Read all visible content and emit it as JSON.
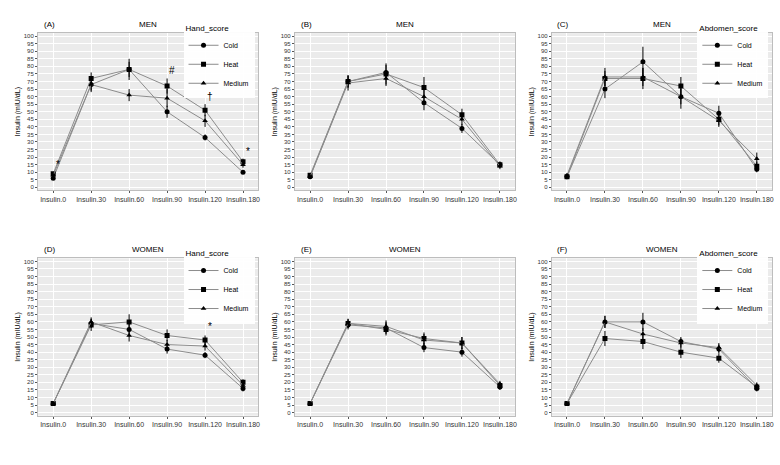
{
  "chart_data": [
    {
      "type": "line",
      "panel_label": "(A)",
      "title": "MEN",
      "legend_title": "Hand_score",
      "legend": "top right",
      "grid": true,
      "y_label": "Insulin (mIU/dL)",
      "categories": [
        "Insulin.0",
        "Insulin.30",
        "Insulin.60",
        "Insulin.90",
        "Insulin.120",
        "Insulin.180"
      ],
      "ylim": [
        -2,
        102
      ],
      "yticks": [
        0,
        5,
        10,
        15,
        20,
        25,
        30,
        35,
        40,
        45,
        50,
        55,
        60,
        65,
        70,
        75,
        80,
        85,
        90,
        95,
        100
      ],
      "series": [
        {
          "name": "Cold",
          "color": "#000000",
          "marker": "circle",
          "line_style": "solid",
          "values": [
            6,
            68,
            78,
            50,
            33,
            10
          ],
          "errors": [
            1,
            4,
            5,
            4,
            2,
            1
          ]
        },
        {
          "name": "Heat",
          "color": "#000000",
          "marker": "square",
          "line_style": "solid",
          "values": [
            9,
            72,
            78,
            67,
            51,
            17
          ],
          "errors": [
            1,
            4,
            7,
            5,
            4,
            2
          ]
        },
        {
          "name": "Medium",
          "color": "#000000",
          "marker": "triangle-up",
          "line_style": "solid",
          "values": [
            8,
            68,
            61,
            59,
            44,
            15
          ],
          "errors": [
            1,
            5,
            4,
            6,
            4,
            2
          ]
        }
      ],
      "annotations": [
        {
          "x": "Insulin.0",
          "y": 10,
          "text": "*"
        },
        {
          "x": "Insulin.90",
          "y": 72,
          "text": "#"
        },
        {
          "x": "Insulin.120",
          "y": 55,
          "text": "†"
        },
        {
          "x": "Insulin.180",
          "y": 19,
          "text": "*"
        }
      ]
    },
    {
      "type": "line",
      "panel_label": "(B)",
      "title": "MEN",
      "legend": false,
      "grid": true,
      "y_label": "Insulin (mIU/dL)",
      "categories": [
        "Insulin.0",
        "Insulin.30",
        "Insulin.60",
        "Insulin.90",
        "Insulin.120",
        "Insulin.180"
      ],
      "ylim": [
        -2,
        102
      ],
      "yticks": [
        0,
        5,
        10,
        15,
        20,
        25,
        30,
        35,
        40,
        45,
        50,
        55,
        60,
        65,
        70,
        75,
        80,
        85,
        90,
        95,
        100
      ],
      "series": [
        {
          "name": "Cold",
          "color": "#000000",
          "marker": "circle",
          "line_style": "solid",
          "values": [
            7,
            70,
            76,
            56,
            39,
            15
          ],
          "errors": [
            1,
            4,
            5,
            5,
            3,
            2
          ]
        },
        {
          "name": "Heat",
          "color": "#000000",
          "marker": "square",
          "line_style": "solid",
          "values": [
            8,
            70,
            75,
            66,
            48,
            15
          ],
          "errors": [
            1,
            4,
            7,
            7,
            4,
            2
          ]
        },
        {
          "name": "Medium",
          "color": "#000000",
          "marker": "triangle-up",
          "line_style": "solid",
          "values": [
            7,
            69,
            72,
            60,
            45,
            14
          ],
          "errors": [
            1,
            5,
            5,
            5,
            4,
            2
          ]
        }
      ]
    },
    {
      "type": "line",
      "panel_label": "(C)",
      "title": "MEN",
      "legend_title": "Abdomen_score",
      "legend": "top right",
      "grid": true,
      "y_label": "Insulin (mIU/dL)",
      "categories": [
        "Insulin.0",
        "Insulin.30",
        "Insulin.60",
        "Insulin.90",
        "Insulin.120",
        "Insulin.180"
      ],
      "ylim": [
        -2,
        102
      ],
      "yticks": [
        0,
        5,
        10,
        15,
        20,
        25,
        30,
        35,
        40,
        45,
        50,
        55,
        60,
        65,
        70,
        75,
        80,
        85,
        90,
        95,
        100
      ],
      "series": [
        {
          "name": "Cold",
          "color": "#000000",
          "marker": "circle",
          "line_style": "solid",
          "values": [
            7,
            65,
            83,
            60,
            49,
            12
          ],
          "errors": [
            1,
            6,
            10,
            8,
            5,
            2
          ]
        },
        {
          "name": "Heat",
          "color": "#000000",
          "marker": "square",
          "line_style": "solid",
          "values": [
            7,
            72,
            72,
            67,
            45,
            14
          ],
          "errors": [
            1,
            5,
            7,
            6,
            4,
            3
          ]
        },
        {
          "name": "Medium",
          "color": "#000000",
          "marker": "triangle-up",
          "line_style": "solid",
          "values": [
            8,
            73,
            73,
            60,
            44,
            19
          ],
          "errors": [
            1,
            6,
            6,
            5,
            4,
            4
          ]
        }
      ]
    },
    {
      "type": "line",
      "panel_label": "(D)",
      "title": "WOMEN",
      "legend_title": "Hand_score",
      "legend": "top right",
      "grid": true,
      "y_label": "Insulin (mIU/dL)",
      "categories": [
        "Insulin.0",
        "Insulin.30",
        "Insulin.60",
        "Insulin.90",
        "Insulin.120",
        "Insulin.180"
      ],
      "ylim": [
        -2,
        102
      ],
      "yticks": [
        0,
        5,
        10,
        15,
        20,
        25,
        30,
        35,
        40,
        45,
        50,
        55,
        60,
        65,
        70,
        75,
        80,
        85,
        90,
        95,
        100
      ],
      "series": [
        {
          "name": "Cold",
          "color": "#000000",
          "marker": "circle",
          "line_style": "solid",
          "values": [
            6,
            59,
            55,
            42,
            38,
            16
          ],
          "errors": [
            1,
            3,
            4,
            3,
            2,
            2
          ]
        },
        {
          "name": "Heat",
          "color": "#000000",
          "marker": "square",
          "line_style": "solid",
          "values": [
            6,
            58,
            60,
            51,
            48,
            20
          ],
          "errors": [
            1,
            4,
            5,
            4,
            3,
            2
          ]
        },
        {
          "name": "Medium",
          "color": "#000000",
          "marker": "triangle-up",
          "line_style": "solid",
          "values": [
            6,
            60,
            51,
            45,
            44,
            18
          ],
          "errors": [
            1,
            3,
            4,
            3,
            3,
            2
          ]
        }
      ],
      "annotations": [
        {
          "x": "Insulin.120",
          "y": 52,
          "text": "*"
        }
      ]
    },
    {
      "type": "line",
      "panel_label": "(E)",
      "title": "WOMEN",
      "legend": false,
      "grid": true,
      "y_label": "Insulin (mIU/dL)",
      "categories": [
        "Insulin.0",
        "Insulin.30",
        "Insulin.60",
        "Insulin.90",
        "Insulin.120",
        "Insulin.180"
      ],
      "ylim": [
        -2,
        102
      ],
      "yticks": [
        0,
        5,
        10,
        15,
        20,
        25,
        30,
        35,
        40,
        45,
        50,
        55,
        60,
        65,
        70,
        75,
        80,
        85,
        90,
        95,
        100
      ],
      "series": [
        {
          "name": "Cold",
          "color": "#000000",
          "marker": "circle",
          "line_style": "solid",
          "values": [
            6,
            58,
            56,
            43,
            40,
            17
          ],
          "errors": [
            1,
            3,
            4,
            3,
            3,
            2
          ]
        },
        {
          "name": "Heat",
          "color": "#000000",
          "marker": "square",
          "line_style": "solid",
          "values": [
            6,
            59,
            55,
            49,
            46,
            18
          ],
          "errors": [
            1,
            3,
            4,
            4,
            4,
            2
          ]
        },
        {
          "name": "Medium",
          "color": "#000000",
          "marker": "triangle-up",
          "line_style": "solid",
          "values": [
            6,
            59,
            57,
            48,
            46,
            19
          ],
          "errors": [
            1,
            3,
            4,
            4,
            4,
            2
          ]
        }
      ]
    },
    {
      "type": "line",
      "panel_label": "(F)",
      "title": "WOMEN",
      "legend_title": "Abdomen_score",
      "legend": "top right",
      "grid": true,
      "y_label": "Insulin (mIU/dL)",
      "categories": [
        "Insulin.0",
        "Insulin.30",
        "Insulin.60",
        "Insulin.90",
        "Insulin.120",
        "Insulin.180"
      ],
      "ylim": [
        -2,
        102
      ],
      "yticks": [
        0,
        5,
        10,
        15,
        20,
        25,
        30,
        35,
        40,
        45,
        50,
        55,
        60,
        65,
        70,
        75,
        80,
        85,
        90,
        95,
        100
      ],
      "series": [
        {
          "name": "Cold",
          "color": "#000000",
          "marker": "circle",
          "line_style": "solid",
          "values": [
            6,
            60,
            60,
            47,
            42,
            16
          ],
          "errors": [
            1,
            4,
            6,
            3,
            3,
            2
          ]
        },
        {
          "name": "Heat",
          "color": "#000000",
          "marker": "square",
          "line_style": "solid",
          "values": [
            6,
            49,
            47,
            40,
            36,
            17
          ],
          "errors": [
            1,
            5,
            5,
            4,
            3,
            2
          ]
        },
        {
          "name": "Medium",
          "color": "#000000",
          "marker": "triangle-up",
          "line_style": "solid",
          "values": [
            6,
            60,
            52,
            46,
            43,
            18
          ],
          "errors": [
            1,
            4,
            4,
            3,
            3,
            2
          ]
        }
      ]
    }
  ]
}
